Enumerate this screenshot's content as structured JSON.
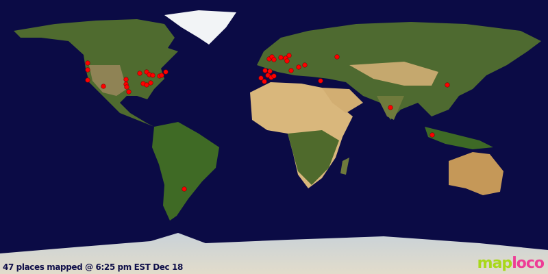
{
  "status": {
    "caption": "47 places mapped @ 6:25 pm EST Dec 18"
  },
  "logo": {
    "part1": "map",
    "part2": "loco"
  },
  "colors": {
    "ocean": "#0b0b45",
    "marker": "#ff0000",
    "logo_map": "#a8d81a",
    "logo_loco": "#ee3d96"
  },
  "marker_icon": "red-dot"
}
